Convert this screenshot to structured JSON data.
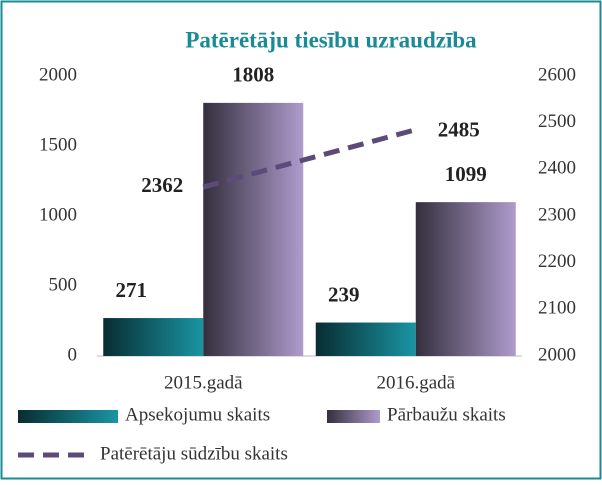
{
  "chart_data": {
    "type": "bar",
    "title": "Patērētāju tiesību uzraudzība",
    "categories": [
      "2015.gadā",
      "2016.gadā"
    ],
    "series": [
      {
        "name": "Apsekojumu skaits",
        "color": "#1a95a3",
        "values": [
          271,
          239
        ]
      },
      {
        "name": "Pārbaužu skaits",
        "color": "#ae9ccc",
        "values": [
          1808,
          1099
        ]
      },
      {
        "name": "Patērētāju sūdzību skaits",
        "color": "#5b4a7a",
        "type": "line",
        "axis": "y2",
        "dashed": true,
        "values": [
          2362,
          2485
        ]
      }
    ],
    "ylim": [
      0,
      2000
    ],
    "yticks": [
      0,
      500,
      1000,
      1500,
      2000
    ],
    "y2lim": [
      2000,
      2600
    ],
    "y2ticks": [
      2000,
      2100,
      2200,
      2300,
      2400,
      2500,
      2600
    ],
    "grid": false,
    "legend": "bottom"
  }
}
